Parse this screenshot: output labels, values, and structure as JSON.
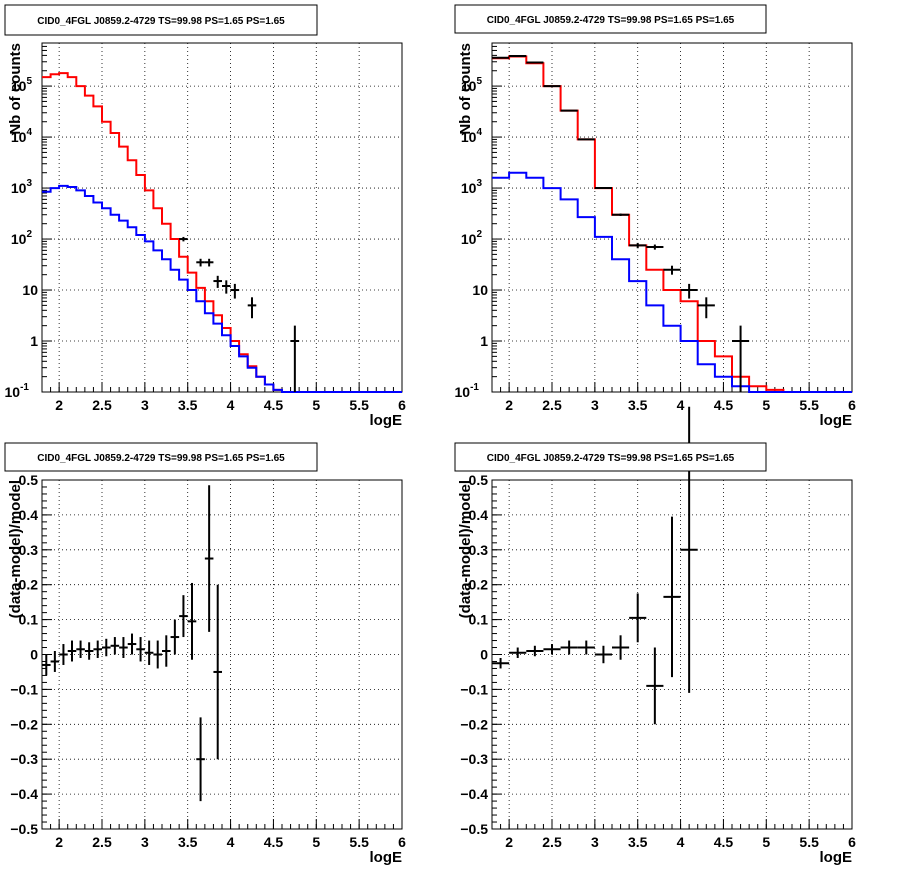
{
  "chart_data": [
    {
      "type": "line",
      "title": "CID0_4FGL J0859.2-4729 TS=99.98 PS=1.65 PS=1.65",
      "xlabel": "logE",
      "ylabel": "Nb of counts",
      "xlim": [
        1.8,
        6.0
      ],
      "ylim": [
        0.1,
        700000
      ],
      "log_y": true,
      "grid": true,
      "x_ticks": [
        "2",
        "2.5",
        "3",
        "3.5",
        "4",
        "4.5",
        "5",
        "5.5",
        "6"
      ],
      "y_ticks": [
        "10^-1",
        "1",
        "10",
        "10^2",
        "10^3",
        "10^4",
        "10^5"
      ],
      "bin_width": 0.1,
      "series": [
        {
          "color": "#ff0000",
          "style": "step",
          "x": [
            1.85,
            1.95,
            2.05,
            2.15,
            2.25,
            2.35,
            2.45,
            2.55,
            2.65,
            2.75,
            2.85,
            2.95,
            3.05,
            3.15,
            3.25,
            3.35,
            3.45,
            3.55,
            3.65,
            3.75,
            3.85,
            3.95,
            4.05,
            4.15,
            4.25,
            4.35,
            4.45,
            4.55,
            4.65,
            4.75,
            4.85,
            4.95,
            5.05,
            5.15,
            5.25,
            5.35,
            5.45,
            5.55,
            5.65,
            5.75,
            5.85,
            5.95
          ],
          "y": [
            150000,
            170000,
            180000,
            150000,
            100000,
            65000,
            40000,
            20000,
            12000,
            6500,
            3500,
            1800,
            900,
            400,
            200,
            100,
            45,
            22,
            11,
            6,
            3.2,
            1.8,
            1.0,
            0.55,
            0.32,
            0.2,
            0.14,
            0.11,
            0.1,
            0.1,
            0.1,
            0.1,
            0.1,
            0.1,
            0.1,
            0.1,
            0.1,
            0.1,
            0.1,
            0.1,
            0.1,
            0.1
          ]
        },
        {
          "color": "#0000ff",
          "style": "step",
          "x": [
            1.85,
            1.95,
            2.05,
            2.15,
            2.25,
            2.35,
            2.45,
            2.55,
            2.65,
            2.75,
            2.85,
            2.95,
            3.05,
            3.15,
            3.25,
            3.35,
            3.45,
            3.55,
            3.65,
            3.75,
            3.85,
            3.95,
            4.05,
            4.15,
            4.25,
            4.35,
            4.45,
            4.55,
            4.65,
            4.75,
            4.85,
            4.95,
            5.05,
            5.15,
            5.25,
            5.35,
            5.45,
            5.55,
            5.65,
            5.75,
            5.85,
            5.95
          ],
          "y": [
            850,
            1000,
            1100,
            1050,
            900,
            700,
            520,
            400,
            300,
            230,
            170,
            120,
            90,
            60,
            40,
            25,
            16,
            10,
            6,
            3.5,
            2.2,
            1.3,
            0.8,
            0.5,
            0.3,
            0.2,
            0.14,
            0.11,
            0.1,
            0.1,
            0.1,
            0.1,
            0.1,
            0.1,
            0.1,
            0.1,
            0.1,
            0.1,
            0.1,
            0.1,
            0.1,
            0.1
          ]
        },
        {
          "color": "#000000",
          "style": "errorbar",
          "x": [
            3.45,
            3.65,
            3.75,
            3.85,
            3.95,
            4.05,
            4.25,
            4.75
          ],
          "y": [
            100,
            35,
            35,
            15,
            12,
            10,
            5,
            1
          ],
          "yerr": [
            10,
            6,
            6,
            4,
            3.5,
            3.2,
            2.2,
            1
          ]
        }
      ]
    },
    {
      "type": "line",
      "title": "CID0_4FGL J0859.2-4729 TS=99.98 PS=1.65 PS=1.65",
      "xlabel": "logE",
      "ylabel": "Nb of counts",
      "xlim": [
        1.8,
        6.0
      ],
      "ylim": [
        0.1,
        700000
      ],
      "log_y": true,
      "grid": true,
      "x_ticks": [
        "2",
        "2.5",
        "3",
        "3.5",
        "4",
        "4.5",
        "5",
        "5.5",
        "6"
      ],
      "y_ticks": [
        "10^-1",
        "1",
        "10",
        "10^2",
        "10^3",
        "10^4",
        "10^5"
      ],
      "bin_width": 0.2,
      "series": [
        {
          "color": "#ff0000",
          "style": "step",
          "x": [
            1.9,
            2.1,
            2.3,
            2.5,
            2.7,
            2.9,
            3.1,
            3.3,
            3.5,
            3.7,
            3.9,
            4.1,
            4.3,
            4.5,
            4.7,
            4.9,
            5.1,
            5.3,
            5.5,
            5.7,
            5.9
          ],
          "y": [
            350000,
            380000,
            280000,
            100000,
            33000,
            9000,
            1000,
            300,
            75,
            25,
            10,
            6,
            1.0,
            0.5,
            0.2,
            0.13,
            0.11,
            0.1,
            0.1,
            0.1,
            0.1
          ],
          "x_ranges": [
            [
              1.8,
              2.0
            ],
            [
              2.0,
              2.2
            ],
            [
              2.2,
              2.4
            ],
            [
              2.4,
              2.6
            ],
            [
              2.6,
              2.8
            ],
            [
              2.8,
              3.0
            ],
            [
              3.0,
              3.2
            ],
            [
              3.2,
              3.4
            ],
            [
              3.4,
              3.6
            ],
            [
              3.6,
              3.8
            ],
            [
              3.8,
              4.0
            ],
            [
              4.0,
              4.2
            ],
            [
              4.2,
              4.4
            ],
            [
              4.4,
              4.6
            ],
            [
              4.6,
              4.8
            ],
            [
              4.8,
              5.0
            ],
            [
              5.0,
              5.2
            ],
            [
              5.2,
              5.4
            ],
            [
              5.4,
              5.6
            ],
            [
              5.6,
              5.8
            ],
            [
              5.8,
              6.0
            ]
          ]
        },
        {
          "color": "#0000ff",
          "style": "step",
          "x": [
            1.9,
            2.1,
            2.3,
            2.5,
            2.7,
            2.9,
            3.1,
            3.3,
            3.5,
            3.7,
            3.9,
            4.1,
            4.3,
            4.5,
            4.7,
            4.9,
            5.1,
            5.3,
            5.5,
            5.7,
            5.9
          ],
          "y": [
            1600,
            2000,
            1600,
            1000,
            600,
            270,
            110,
            40,
            15,
            5,
            2,
            1,
            0.35,
            0.2,
            0.13,
            0.1,
            0.1,
            0.1,
            0.1,
            0.1,
            0.1
          ]
        },
        {
          "color": "#000000",
          "style": "errorbar",
          "x": [
            1.9,
            2.1,
            2.3,
            2.5,
            2.7,
            2.9,
            3.1,
            3.3,
            3.5,
            3.7,
            3.9,
            4.1,
            4.3,
            4.7
          ],
          "y": [
            360000,
            390000,
            290000,
            100000,
            33000,
            9000,
            1000,
            300,
            75,
            70,
            25,
            10,
            5,
            1
          ],
          "yerr": [
            600,
            620,
            540,
            320,
            180,
            95,
            32,
            17,
            9,
            8,
            5,
            3.2,
            2.2,
            1
          ]
        }
      ]
    },
    {
      "type": "scatter",
      "title": "CID0_4FGL J0859.2-4729 TS=99.98 PS=1.65 PS=1.65",
      "xlabel": "logE",
      "ylabel": "(data-model)/model",
      "xlim": [
        1.8,
        6.0
      ],
      "ylim": [
        -0.5,
        0.5
      ],
      "grid": true,
      "x_ticks": [
        "2",
        "2.5",
        "3",
        "3.5",
        "4",
        "4.5",
        "5",
        "5.5",
        "6"
      ],
      "y_ticks": [
        "−0.5",
        "−0.4",
        "−0.3",
        "−0.2",
        "−0.1",
        "0",
        "0.1",
        "0.2",
        "0.3",
        "0.4",
        "0.5"
      ],
      "series": [
        {
          "color": "#000000",
          "style": "errorbar",
          "xerr": 0.05,
          "x": [
            1.85,
            1.95,
            2.05,
            2.15,
            2.25,
            2.35,
            2.45,
            2.55,
            2.65,
            2.75,
            2.85,
            2.95,
            3.05,
            3.15,
            3.25,
            3.35,
            3.45,
            3.55,
            3.65,
            3.75,
            3.85
          ],
          "y": [
            -0.03,
            -0.02,
            0.0,
            0.01,
            0.015,
            0.01,
            0.015,
            0.02,
            0.025,
            0.02,
            0.03,
            0.015,
            0.005,
            0.0,
            0.01,
            0.05,
            0.11,
            0.095,
            -0.3,
            0.275,
            -0.05
          ],
          "yerr": [
            0.03,
            0.03,
            0.03,
            0.03,
            0.025,
            0.025,
            0.025,
            0.025,
            0.025,
            0.03,
            0.03,
            0.035,
            0.035,
            0.04,
            0.045,
            0.05,
            0.06,
            0.11,
            0.12,
            0.21,
            0.25
          ]
        }
      ]
    },
    {
      "type": "scatter",
      "title": "CID0_4FGL J0859.2-4729 TS=99.98 PS=1.65 PS=1.65",
      "xlabel": "logE",
      "ylabel": "(data-model)/model",
      "xlim": [
        1.8,
        6.0
      ],
      "ylim": [
        -0.5,
        0.5
      ],
      "grid": true,
      "x_ticks": [
        "2",
        "2.5",
        "3",
        "3.5",
        "4",
        "4.5",
        "5",
        "5.5",
        "6"
      ],
      "y_ticks": [
        "−0.5",
        "−0.4",
        "−0.3",
        "−0.2",
        "−0.1",
        "0",
        "0.1",
        "0.2",
        "0.3",
        "0.4",
        "0.5"
      ],
      "series": [
        {
          "color": "#000000",
          "style": "errorbar",
          "xerr": 0.1,
          "x": [
            1.9,
            2.1,
            2.3,
            2.5,
            2.7,
            2.9,
            3.1,
            3.3,
            3.5,
            3.7,
            3.9,
            4.1
          ],
          "y": [
            -0.025,
            0.005,
            0.01,
            0.015,
            0.02,
            0.02,
            0.0,
            0.02,
            0.105,
            -0.09,
            0.165,
            0.3
          ],
          "yerr": [
            0.015,
            0.015,
            0.015,
            0.015,
            0.02,
            0.02,
            0.025,
            0.035,
            0.07,
            0.11,
            0.23,
            0.41
          ]
        }
      ]
    }
  ]
}
